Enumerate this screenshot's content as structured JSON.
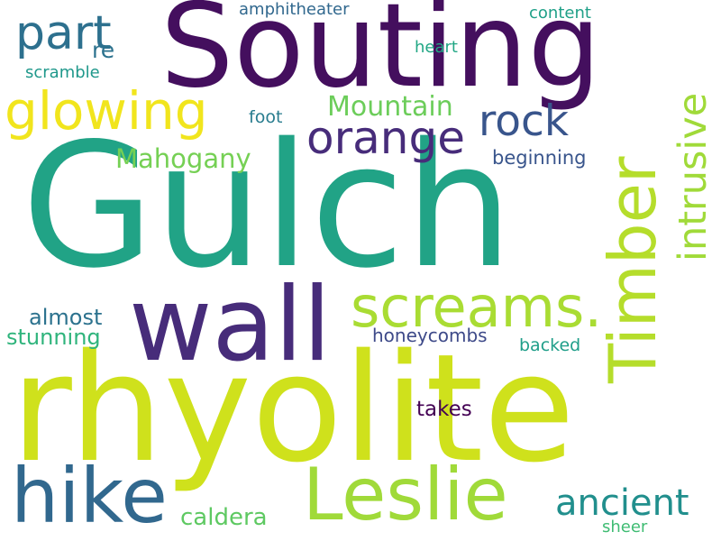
{
  "words": {
    "gulch": {
      "text": "Gulch",
      "color": "#21a386"
    },
    "rhyolite": {
      "text": "rhyolite",
      "color": "#cfe11c"
    },
    "souting": {
      "text": "Souting",
      "color": "#440f5e"
    },
    "wall": {
      "text": "wall",
      "color": "#472c7a"
    },
    "timber": {
      "text": "Timber",
      "color": "#b5dd2b"
    },
    "hike": {
      "text": "hike",
      "color": "#31688e"
    },
    "leslie": {
      "text": "Leslie",
      "color": "#a0da39"
    },
    "screams": {
      "text": "screams.",
      "color": "#a9dc33"
    },
    "glowing": {
      "text": "glowing",
      "color": "#f1e51d"
    },
    "orange": {
      "text": "orange",
      "color": "#472c7a"
    },
    "rock": {
      "text": "rock",
      "color": "#39558c"
    },
    "intrusive": {
      "text": "intrusive",
      "color": "#a0da39"
    },
    "part": {
      "text": "part",
      "color": "#2d708e"
    },
    "ancient": {
      "text": "ancient",
      "color": "#218f8d"
    },
    "mountain": {
      "text": "Mountain",
      "color": "#6ccd5a"
    },
    "mahogany": {
      "text": "Mahogany",
      "color": "#75d054"
    },
    "caldera": {
      "text": "caldera",
      "color": "#5ec962"
    },
    "re": {
      "text": "re",
      "color": "#2c728e"
    },
    "almost": {
      "text": "almost",
      "color": "#2c728e"
    },
    "stunning": {
      "text": "stunning",
      "color": "#2fb47c"
    },
    "honeycombs": {
      "text": "honeycombs",
      "color": "#3e4a89"
    },
    "beginning": {
      "text": "beginning",
      "color": "#39558c"
    },
    "takes": {
      "text": "takes",
      "color": "#440154"
    },
    "amphitheater": {
      "text": "amphitheater",
      "color": "#31688e"
    },
    "content": {
      "text": "content",
      "color": "#1fa088"
    },
    "heart": {
      "text": "heart",
      "color": "#22a785"
    },
    "scramble": {
      "text": "scramble",
      "color": "#1f988b"
    },
    "foot": {
      "text": "foot",
      "color": "#287c8e"
    },
    "backed": {
      "text": "backed",
      "color": "#1f9e89"
    },
    "sheer": {
      "text": "sheer",
      "color": "#3fbc73"
    }
  }
}
